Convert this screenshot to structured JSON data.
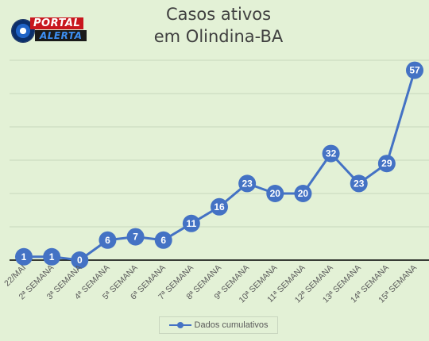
{
  "chart_data": {
    "type": "line",
    "title": [
      "Casos ativos",
      "em Olindina-BA"
    ],
    "categories": [
      "22/MAI",
      "2ª SEMANA",
      "3ª SEMANA",
      "4ª SEMANA",
      "5ª SEMANA",
      "6ª SEMANA",
      "7ª SEMANA",
      "8ª SEMANA",
      "9ª SEMANA",
      "10ª SEMANA",
      "11ª SEMANA",
      "12ª SEMANA",
      "13ª SEMANA",
      "14ª SEMANA",
      "15ª SEMANA"
    ],
    "series": [
      {
        "name": "Dados cumulativos",
        "values": [
          1,
          1,
          0,
          6,
          7,
          6,
          11,
          16,
          23,
          20,
          20,
          32,
          23,
          29,
          57
        ]
      }
    ],
    "ylim": [
      0,
      60
    ],
    "grid": true,
    "legend_position": "bottom",
    "colors": {
      "line": "#4472c4",
      "label_text": "#ffffff",
      "axis_text": "#595959",
      "grid": "#c7d6bc",
      "background": "#e3f1d6"
    }
  },
  "logo": {
    "text_top": "PORTAL",
    "text_bottom": "ALERTA"
  }
}
